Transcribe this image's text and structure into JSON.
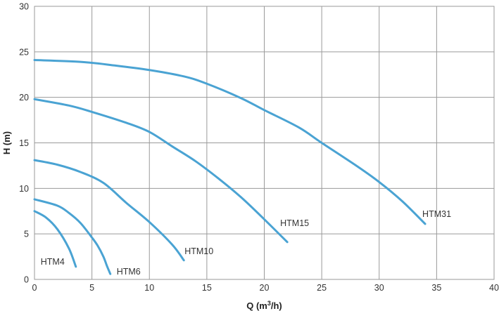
{
  "chart_data": {
    "type": "line",
    "title": "",
    "xlabel": "Q (m",
    "xlabel_sup": "3",
    "xlabel_tail": "/h)",
    "ylabel": "H (m)",
    "xlim": [
      0,
      40
    ],
    "ylim": [
      0,
      30
    ],
    "x_ticks": [
      0,
      5,
      10,
      15,
      20,
      25,
      30,
      35,
      40
    ],
    "y_ticks": [
      0,
      5,
      10,
      15,
      20,
      25,
      30
    ],
    "x_tick_labels": [
      "0",
      "5",
      "10",
      "15",
      "20",
      "25",
      "30",
      "35",
      "40"
    ],
    "y_tick_labels": [
      "0",
      "5",
      "10",
      "15",
      "20",
      "25",
      "30"
    ],
    "grid": true,
    "line_color": "#4aa3d3",
    "series": [
      {
        "name": "HTM4",
        "label": "HTM4",
        "x": [
          0,
          1,
          2,
          3,
          3.6
        ],
        "y": [
          7.5,
          6.8,
          5.5,
          3.4,
          1.4
        ]
      },
      {
        "name": "HTM6",
        "label": "HTM6",
        "x": [
          0,
          2,
          3,
          4,
          5,
          5.5,
          6,
          6.3,
          6.6
        ],
        "y": [
          8.8,
          8.1,
          7.3,
          6.2,
          4.6,
          3.7,
          2.5,
          1.5,
          0.6
        ]
      },
      {
        "name": "HTM10",
        "label": "HTM10",
        "x": [
          0,
          2,
          4,
          6,
          8,
          10,
          12,
          13
        ],
        "y": [
          13.1,
          12.6,
          11.8,
          10.6,
          8.4,
          6.3,
          3.8,
          2.1
        ]
      },
      {
        "name": "HTM15",
        "label": "HTM15",
        "x": [
          0,
          3,
          5,
          8,
          10,
          12,
          14,
          16,
          18,
          20,
          22
        ],
        "y": [
          19.8,
          19.1,
          18.4,
          17.2,
          16.2,
          14.6,
          13.0,
          11.1,
          9.0,
          6.6,
          4.1
        ]
      },
      {
        "name": "HTM31",
        "label": "HTM31",
        "x": [
          0,
          4,
          7,
          10,
          13,
          15,
          18,
          20,
          23,
          25,
          28,
          30,
          32,
          34
        ],
        "y": [
          24.1,
          23.9,
          23.5,
          23.0,
          22.3,
          21.5,
          19.9,
          18.6,
          16.7,
          15.0,
          12.5,
          10.7,
          8.6,
          6.1
        ]
      }
    ]
  }
}
